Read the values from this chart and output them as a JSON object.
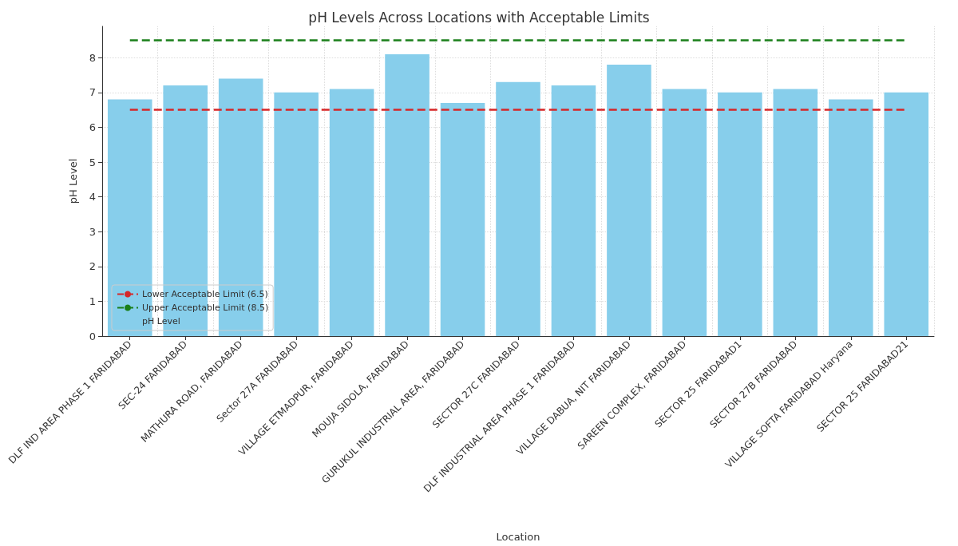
{
  "chart_data": {
    "type": "bar",
    "title": "pH Levels Across Locations with Acceptable Limits",
    "xlabel": "Location",
    "ylabel": "pH Level",
    "categories": [
      "DLF IND AREA PHASE 1 FARIDABAD",
      "SEC-24 FARIDABAD",
      "MATHURA ROAD, FARIDABAD",
      "Sector 27A FARIDABAD",
      "VILLAGE ETMADPUR, FARIDABAD",
      "MOUJA SIDOLA, FARIDABAD",
      "GURUKUL INDUSTRIAL AREA, FARIDABAD",
      "SECTOR 27C FARIDABAD",
      "DLF INDUSTRIAL AREA PHASE 1 FARIDABAD",
      "VILLAGE DABUA, NIT FARIDABAD",
      "SAREEN COMPLEX, FARIDABAD",
      "SECTOR 25 FARIDABAD1",
      "SECTOR 27B FARIDABAD",
      "VILLAGE SOFTA FARIDABAD Haryana",
      "SECTOR 25 FARIDABAD21"
    ],
    "series": [
      {
        "name": "pH Level",
        "color": "#87ceeb",
        "values": [
          6.8,
          7.2,
          7.4,
          7.0,
          7.1,
          8.1,
          6.7,
          7.3,
          7.2,
          7.8,
          7.1,
          7.0,
          7.1,
          6.8,
          7.0
        ]
      }
    ],
    "ref_lines": [
      {
        "axis": "y",
        "value": 6.5,
        "label": "Lower Acceptable Limit (6.5)",
        "color": "#d62728",
        "line_style": "dashed"
      },
      {
        "axis": "y",
        "value": 8.5,
        "label": "Upper Acceptable Limit (8.5)",
        "color": "#1a7f1a",
        "line_style": "dashed"
      }
    ],
    "ylim": [
      0,
      8.9
    ],
    "yticks": [
      0,
      1,
      2,
      3,
      4,
      5,
      6,
      7,
      8
    ],
    "grid": true,
    "legend": "bottom left"
  }
}
